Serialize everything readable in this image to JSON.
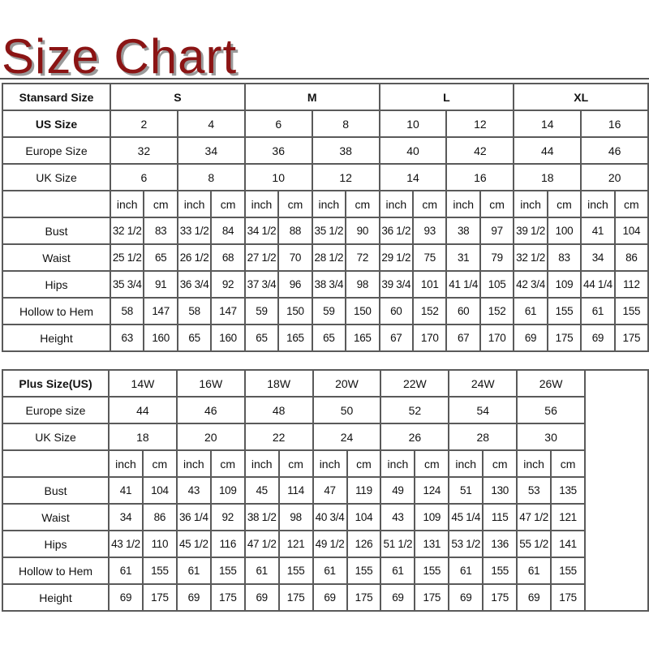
{
  "title": "Size Chart",
  "colors": {
    "title": "#8b1414",
    "grid": "#5a5a5a"
  },
  "standard": {
    "header_label": "Stansard Size",
    "groups": [
      "S",
      "M",
      "L",
      "XL"
    ],
    "size_rows": [
      {
        "label": "US Size",
        "values": [
          "2",
          "4",
          "6",
          "8",
          "10",
          "12",
          "14",
          "16"
        ]
      },
      {
        "label": "Europe Size",
        "values": [
          "32",
          "34",
          "36",
          "38",
          "40",
          "42",
          "44",
          "46"
        ]
      },
      {
        "label": "UK Size",
        "values": [
          "6",
          "8",
          "10",
          "12",
          "14",
          "16",
          "18",
          "20"
        ]
      }
    ],
    "units": [
      "inch",
      "cm"
    ],
    "measure_rows": [
      {
        "label": "Bust",
        "values": [
          "32 1/2",
          "83",
          "33 1/2",
          "84",
          "34 1/2",
          "88",
          "35 1/2",
          "90",
          "36 1/2",
          "93",
          "38",
          "97",
          "39 1/2",
          "100",
          "41",
          "104"
        ]
      },
      {
        "label": "Waist",
        "values": [
          "25 1/2",
          "65",
          "26 1/2",
          "68",
          "27 1/2",
          "70",
          "28 1/2",
          "72",
          "29 1/2",
          "75",
          "31",
          "79",
          "32 1/2",
          "83",
          "34",
          "86"
        ]
      },
      {
        "label": "Hips",
        "values": [
          "35 3/4",
          "91",
          "36 3/4",
          "92",
          "37 3/4",
          "96",
          "38 3/4",
          "98",
          "39 3/4",
          "101",
          "41 1/4",
          "105",
          "42 3/4",
          "109",
          "44 1/4",
          "112"
        ]
      },
      {
        "label": "Hollow to Hem",
        "values": [
          "58",
          "147",
          "58",
          "147",
          "59",
          "150",
          "59",
          "150",
          "60",
          "152",
          "60",
          "152",
          "61",
          "155",
          "61",
          "155"
        ]
      },
      {
        "label": "Height",
        "values": [
          "63",
          "160",
          "65",
          "160",
          "65",
          "165",
          "65",
          "165",
          "67",
          "170",
          "67",
          "170",
          "69",
          "175",
          "69",
          "175"
        ]
      }
    ]
  },
  "plus": {
    "header_label": "Plus Size(US)",
    "sizes": [
      "14W",
      "16W",
      "18W",
      "20W",
      "22W",
      "24W",
      "26W"
    ],
    "size_rows": [
      {
        "label": "Europe size",
        "values": [
          "44",
          "46",
          "48",
          "50",
          "52",
          "54",
          "56"
        ]
      },
      {
        "label": "UK Size",
        "values": [
          "18",
          "20",
          "22",
          "24",
          "26",
          "28",
          "30"
        ]
      }
    ],
    "units": [
      "inch",
      "cm"
    ],
    "measure_rows": [
      {
        "label": "Bust",
        "values": [
          "41",
          "104",
          "43",
          "109",
          "45",
          "114",
          "47",
          "119",
          "49",
          "124",
          "51",
          "130",
          "53",
          "135"
        ]
      },
      {
        "label": "Waist",
        "values": [
          "34",
          "86",
          "36 1/4",
          "92",
          "38 1/2",
          "98",
          "40 3/4",
          "104",
          "43",
          "109",
          "45 1/4",
          "115",
          "47 1/2",
          "121"
        ]
      },
      {
        "label": "Hips",
        "values": [
          "43 1/2",
          "110",
          "45 1/2",
          "116",
          "47 1/2",
          "121",
          "49 1/2",
          "126",
          "51 1/2",
          "131",
          "53 1/2",
          "136",
          "55 1/2",
          "141"
        ]
      },
      {
        "label": "Hollow to Hem",
        "values": [
          "61",
          "155",
          "61",
          "155",
          "61",
          "155",
          "61",
          "155",
          "61",
          "155",
          "61",
          "155",
          "61",
          "155"
        ]
      },
      {
        "label": "Height",
        "values": [
          "69",
          "175",
          "69",
          "175",
          "69",
          "175",
          "69",
          "175",
          "69",
          "175",
          "69",
          "175",
          "69",
          "175"
        ]
      }
    ]
  }
}
